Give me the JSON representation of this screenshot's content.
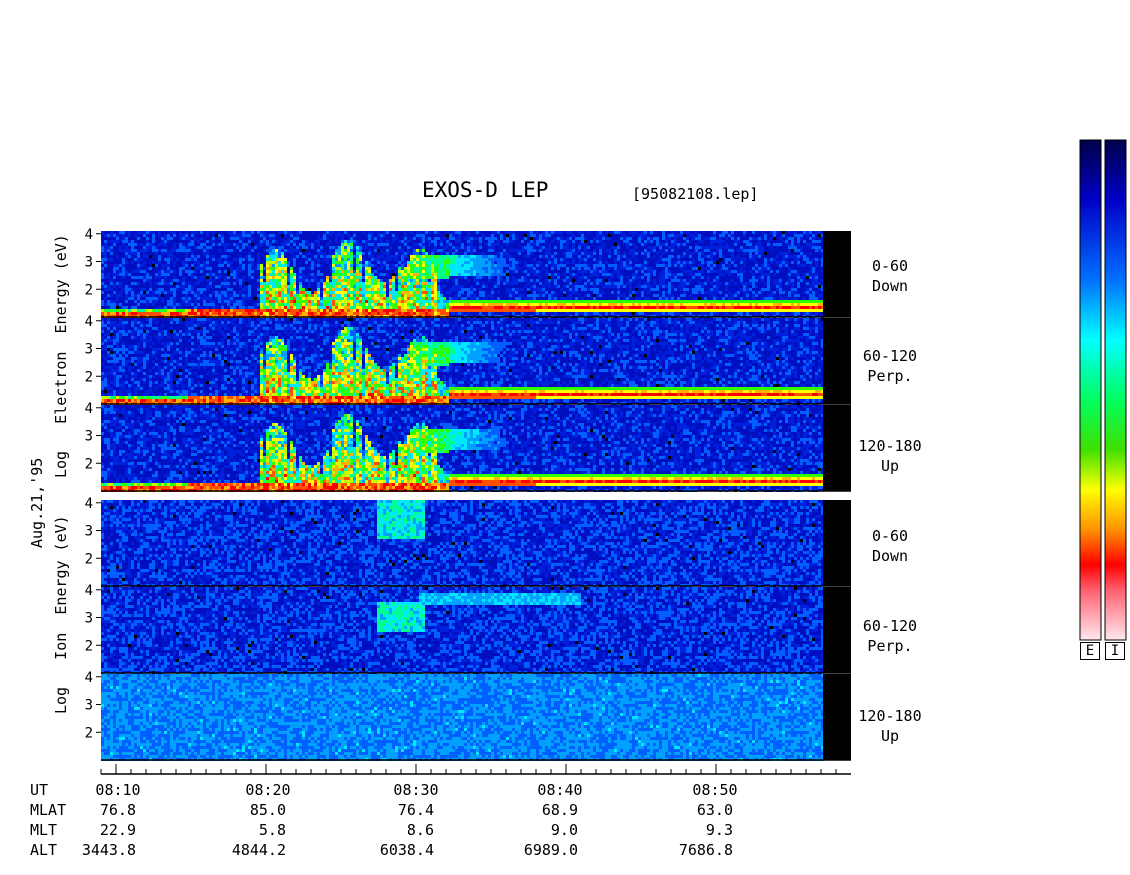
{
  "chart_data": {
    "type": "heatmap",
    "title": "EXOS-D LEP",
    "filename": "[95082108.lep]",
    "date_label": "Aug.21,'95",
    "electron_axis": [
      "Log",
      "Electron",
      "Energy",
      "(eV)"
    ],
    "ion_axis": [
      "Log",
      "Ion",
      "Energy",
      "(eV)"
    ],
    "y_ticks": [
      "4",
      "3",
      "2"
    ],
    "y_ticks_bottom": [
      "3",
      "2"
    ],
    "panels": [
      {
        "group": "electron",
        "pitch_angle": "0-60",
        "direction": "Down"
      },
      {
        "group": "electron",
        "pitch_angle": "60-120",
        "direction": "Perp."
      },
      {
        "group": "electron",
        "pitch_angle": "120-180",
        "direction": "Up"
      },
      {
        "group": "ion",
        "pitch_angle": "0-60",
        "direction": "Down"
      },
      {
        "group": "ion",
        "pitch_angle": "60-120",
        "direction": "Perp."
      },
      {
        "group": "ion",
        "pitch_angle": "120-180",
        "direction": "Up"
      }
    ],
    "x_axis": {
      "start": "08:09",
      "end": "08:59",
      "ticks": [
        "08:10",
        "08:20",
        "08:30",
        "08:40",
        "08:50"
      ]
    },
    "colorbar_labels": [
      "E",
      "I"
    ],
    "ephemeris": [
      {
        "name": "UT",
        "values": [
          "08:10",
          "08:20",
          "08:30",
          "08:40",
          "08:50"
        ]
      },
      {
        "name": "MLAT",
        "values": [
          "76.8",
          "85.0",
          "76.4",
          "68.9",
          "63.0"
        ]
      },
      {
        "name": "MLT",
        "values": [
          "22.9",
          "5.8",
          "8.6",
          "9.0",
          "9.3"
        ]
      },
      {
        "name": "ALT",
        "values": [
          "3443.8",
          "4844.2",
          "6038.4",
          "6989.0",
          "7686.8"
        ]
      }
    ],
    "colors": {
      "low": "#0000a0",
      "mid_low": "#0050ff",
      "mid": "#00ffff",
      "mid_high": "#00ff00",
      "high": "#ffff00",
      "higher": "#ff8000",
      "max": "#ff0000",
      "sat": "#ffd0d8",
      "nodata": "#000000"
    }
  }
}
